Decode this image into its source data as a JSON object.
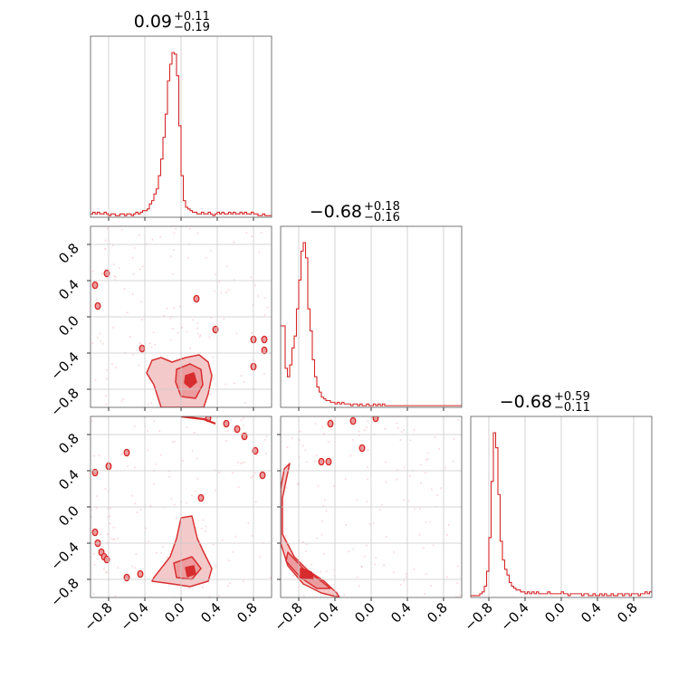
{
  "colors": {
    "series": "#d62728",
    "fill_light": "#f4c7c8",
    "fill_mid": "#ec9a9c",
    "grid": "#c8c8c8"
  },
  "chart_data": {
    "type": "corner",
    "parameter_ranges": [
      [
        -1.0,
        1.0
      ],
      [
        -1.0,
        1.0
      ],
      [
        -1.0,
        1.0
      ]
    ],
    "tick_labels": [
      "−0.8",
      "−0.4",
      "0.0",
      "0.4",
      "0.8"
    ],
    "tick_values": [
      -0.8,
      -0.4,
      0.0,
      0.4,
      0.8
    ],
    "grid": true,
    "titles": [
      {
        "value": "0.09",
        "plus": "+0.11",
        "minus": "−0.19"
      },
      {
        "value": "−0.68",
        "plus": "+0.18",
        "minus": "−0.16"
      },
      {
        "value": "−0.68",
        "plus": "+0.59",
        "minus": "−0.11"
      }
    ],
    "histograms": [
      {
        "param": 0,
        "bin_edges_start": -1.0,
        "bin_width": 0.025,
        "counts": [
          2,
          3,
          2,
          3,
          2,
          2,
          3,
          2,
          1,
          2,
          2,
          1,
          1,
          2,
          2,
          1,
          2,
          2,
          1,
          2,
          3,
          2,
          3,
          4,
          4,
          5,
          8,
          10,
          14,
          17,
          25,
          35,
          48,
          62,
          82,
          92,
          99,
          98,
          85,
          55,
          25,
          10,
          6,
          5,
          4,
          3,
          3,
          2,
          2,
          3,
          2,
          2,
          3,
          2,
          1,
          2,
          3,
          2,
          3,
          2,
          2,
          3,
          2,
          3,
          2,
          2,
          3,
          2,
          3,
          2,
          2,
          3,
          2,
          2,
          1,
          1,
          2,
          1,
          1,
          1
        ]
      },
      {
        "param": 1,
        "bin_edges_start": -1.0,
        "bin_width": 0.025,
        "counts": [
          48,
          48,
          23,
          18,
          25,
          35,
          42,
          58,
          75,
          92,
          97,
          88,
          58,
          45,
          28,
          18,
          12,
          9,
          6,
          5,
          4,
          4,
          3,
          3,
          2,
          3,
          2,
          3,
          2,
          2,
          2,
          1,
          2,
          2,
          1,
          2,
          1,
          1,
          2,
          1,
          1,
          2,
          1,
          2,
          1,
          2,
          1,
          1,
          1,
          1,
          1,
          1,
          1,
          1,
          1,
          1,
          1,
          1,
          1,
          1,
          1,
          1,
          1,
          1,
          1,
          1,
          1,
          1,
          1,
          1,
          1,
          1,
          1,
          1,
          1,
          1,
          1,
          1,
          1,
          1
        ]
      },
      {
        "param": 2,
        "bin_edges_start": -1.0,
        "bin_width": 0.025,
        "counts": [
          1,
          1,
          1,
          1,
          2,
          3,
          6,
          14,
          32,
          62,
          88,
          80,
          55,
          30,
          20,
          15,
          12,
          8,
          6,
          5,
          4,
          4,
          3,
          3,
          2,
          3,
          2,
          3,
          2,
          3,
          2,
          2,
          2,
          2,
          3,
          2,
          2,
          2,
          2,
          2,
          3,
          2,
          2,
          1,
          2,
          2,
          2,
          2,
          2,
          1,
          2,
          2,
          1,
          1,
          2,
          1,
          1,
          2,
          1,
          2,
          1,
          1,
          2,
          1,
          1,
          2,
          2,
          1,
          2,
          2,
          1,
          2,
          2,
          2,
          1,
          2,
          2,
          3,
          2,
          3
        ]
      }
    ],
    "density_panels": [
      {
        "x_param": 0,
        "y_param": 1,
        "mode": [
          0.09,
          -0.68
        ],
        "contours": [
          {
            "level": "outer",
            "points": [
              [
                -0.32,
                -0.48
              ],
              [
                -0.22,
                -0.45
              ],
              [
                -0.1,
                -0.5
              ],
              [
                0.05,
                -0.45
              ],
              [
                0.2,
                -0.42
              ],
              [
                0.3,
                -0.5
              ],
              [
                0.34,
                -0.65
              ],
              [
                0.3,
                -0.85
              ],
              [
                0.25,
                -1.0
              ],
              [
                -0.22,
                -1.0
              ],
              [
                -0.3,
                -0.75
              ],
              [
                -0.38,
                -0.62
              ]
            ]
          },
          {
            "level": "inner",
            "points": [
              [
                -0.05,
                -0.58
              ],
              [
                0.1,
                -0.52
              ],
              [
                0.22,
                -0.58
              ],
              [
                0.24,
                -0.75
              ],
              [
                0.16,
                -0.9
              ],
              [
                0.0,
                -0.88
              ],
              [
                -0.06,
                -0.72
              ]
            ]
          },
          {
            "level": "core",
            "points": [
              [
                0.05,
                -0.65
              ],
              [
                0.14,
                -0.62
              ],
              [
                0.17,
                -0.72
              ],
              [
                0.1,
                -0.78
              ],
              [
                0.04,
                -0.73
              ]
            ]
          }
        ],
        "islands": [
          [
            -0.82,
            0.48
          ],
          [
            -0.95,
            0.35
          ],
          [
            -0.92,
            0.12
          ],
          [
            0.17,
            0.2
          ],
          [
            0.38,
            -0.14
          ],
          [
            -0.43,
            -0.35
          ],
          [
            0.8,
            -0.25
          ],
          [
            0.92,
            -0.25
          ],
          [
            0.92,
            -0.37
          ],
          [
            0.8,
            -0.55
          ]
        ]
      },
      {
        "x_param": 0,
        "y_param": 2,
        "mode": [
          0.09,
          -0.72
        ],
        "contours": [
          {
            "level": "outer",
            "points": [
              [
                -0.3,
                -0.78
              ],
              [
                -0.12,
                -0.55
              ],
              [
                -0.05,
                -0.35
              ],
              [
                0.0,
                -0.12
              ],
              [
                0.12,
                -0.1
              ],
              [
                0.18,
                -0.35
              ],
              [
                0.25,
                -0.5
              ],
              [
                0.34,
                -0.68
              ],
              [
                0.3,
                -0.82
              ],
              [
                0.1,
                -0.88
              ],
              [
                -0.1,
                -0.85
              ],
              [
                -0.32,
                -0.82
              ]
            ]
          },
          {
            "level": "inner",
            "points": [
              [
                -0.08,
                -0.62
              ],
              [
                0.12,
                -0.55
              ],
              [
                0.22,
                -0.68
              ],
              [
                0.12,
                -0.8
              ],
              [
                -0.05,
                -0.78
              ]
            ]
          },
          {
            "level": "core",
            "points": [
              [
                0.05,
                -0.67
              ],
              [
                0.14,
                -0.65
              ],
              [
                0.16,
                -0.74
              ],
              [
                0.07,
                -0.77
              ]
            ]
          }
        ],
        "islands": [
          [
            -0.95,
            0.38
          ],
          [
            -0.8,
            0.45
          ],
          [
            -0.6,
            0.6
          ],
          [
            -0.95,
            -0.28
          ],
          [
            -0.92,
            -0.4
          ],
          [
            -0.88,
            -0.5
          ],
          [
            -0.85,
            -0.55
          ],
          [
            -0.82,
            -0.58
          ],
          [
            -0.6,
            -0.78
          ],
          [
            -0.45,
            -0.74
          ],
          [
            0.22,
            0.1
          ],
          [
            0.3,
            0.98
          ],
          [
            0.5,
            0.92
          ],
          [
            0.62,
            0.86
          ],
          [
            0.7,
            0.78
          ],
          [
            0.82,
            0.62
          ],
          [
            0.9,
            0.35
          ]
        ],
        "ring": [
          [
            0.0,
            1.0
          ],
          [
            0.25,
            0.97
          ],
          [
            0.38,
            0.92
          ]
        ]
      },
      {
        "x_param": 1,
        "y_param": 2,
        "mode": [
          -0.72,
          -0.72
        ],
        "contours": [
          {
            "level": "outer",
            "points": [
              [
                -0.9,
                0.48
              ],
              [
                -0.98,
                0.1
              ],
              [
                -0.98,
                -0.3
              ],
              [
                -0.85,
                -0.55
              ],
              [
                -0.7,
                -0.7
              ],
              [
                -0.52,
                -0.82
              ],
              [
                -0.38,
                -0.95
              ],
              [
                -0.35,
                -1.0
              ],
              [
                -0.55,
                -0.95
              ],
              [
                -0.75,
                -0.85
              ],
              [
                -0.92,
                -0.65
              ],
              [
                -1.0,
                -0.4
              ],
              [
                -1.0,
                0.2
              ],
              [
                -0.96,
                0.42
              ]
            ]
          },
          {
            "level": "inner",
            "points": [
              [
                -0.92,
                -0.5
              ],
              [
                -0.75,
                -0.68
              ],
              [
                -0.55,
                -0.82
              ],
              [
                -0.45,
                -0.9
              ],
              [
                -0.6,
                -0.9
              ],
              [
                -0.78,
                -0.78
              ],
              [
                -0.94,
                -0.6
              ]
            ]
          },
          {
            "level": "core",
            "points": [
              [
                -0.78,
                -0.68
              ],
              [
                -0.66,
                -0.72
              ],
              [
                -0.64,
                -0.8
              ],
              [
                -0.78,
                -0.78
              ]
            ]
          }
        ],
        "islands": [
          [
            -0.55,
            0.5
          ],
          [
            -0.47,
            0.5
          ],
          [
            -0.1,
            0.65
          ],
          [
            -0.45,
            0.92
          ],
          [
            -0.2,
            0.95
          ],
          [
            0.05,
            0.98
          ]
        ]
      }
    ]
  }
}
